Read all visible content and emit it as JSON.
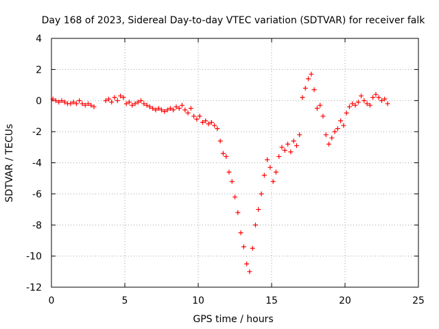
{
  "chart_data": {
    "type": "scatter",
    "title": "Day 168 of 2023, Sidereal Day-to-day VTEC variation (SDTVAR) for receiver falk",
    "xlabel": "GPS time / hours",
    "ylabel": "SDTVAR / TECUs",
    "xlim": [
      0,
      25
    ],
    "ylim": [
      -12,
      4
    ],
    "xticks": [
      "0",
      "5",
      "10",
      "15",
      "20",
      "25"
    ],
    "yticks": [
      "4",
      "2",
      "0",
      "-2",
      "-4",
      "-6",
      "-8",
      "-10",
      "-12"
    ],
    "grid": true,
    "marker": "+",
    "series": [
      {
        "name": "SDTVAR",
        "color": "#ff0000",
        "x": [
          0.1,
          0.3,
          0.5,
          0.7,
          0.9,
          1.1,
          1.3,
          1.5,
          1.7,
          1.9,
          2.1,
          2.3,
          2.5,
          2.7,
          2.9,
          3.7,
          3.9,
          4.1,
          4.3,
          4.5,
          4.7,
          4.9,
          5.1,
          5.3,
          5.5,
          5.7,
          5.9,
          6.1,
          6.3,
          6.5,
          6.7,
          6.9,
          7.1,
          7.3,
          7.5,
          7.7,
          7.9,
          8.1,
          8.3,
          8.5,
          8.7,
          8.9,
          9.1,
          9.3,
          9.5,
          9.7,
          9.9,
          10.1,
          10.3,
          10.5,
          10.7,
          10.9,
          11.1,
          11.3,
          11.5,
          11.7,
          11.9,
          12.1,
          12.3,
          12.5,
          12.7,
          12.9,
          13.1,
          13.3,
          13.5,
          13.7,
          13.9,
          14.1,
          14.3,
          14.5,
          14.7,
          14.9,
          15.1,
          15.3,
          15.5,
          15.7,
          15.9,
          16.1,
          16.3,
          16.5,
          16.7,
          16.9,
          17.1,
          17.3,
          17.5,
          17.7,
          17.9,
          18.1,
          18.3,
          18.5,
          18.7,
          18.9,
          19.1,
          19.3,
          19.5,
          19.7,
          19.9,
          20.1,
          20.3,
          20.5,
          20.7,
          20.9,
          21.1,
          21.3,
          21.5,
          21.7,
          21.9,
          22.1,
          22.3,
          22.5,
          22.7,
          22.9
        ],
        "y": [
          0.1,
          0.0,
          -0.1,
          0.0,
          -0.1,
          -0.2,
          -0.2,
          -0.1,
          -0.2,
          0.0,
          -0.2,
          -0.3,
          -0.2,
          -0.3,
          -0.4,
          0.0,
          0.1,
          -0.1,
          0.2,
          0.0,
          0.3,
          0.2,
          -0.2,
          -0.1,
          -0.3,
          -0.2,
          -0.1,
          0.0,
          -0.2,
          -0.3,
          -0.4,
          -0.5,
          -0.6,
          -0.5,
          -0.6,
          -0.7,
          -0.6,
          -0.5,
          -0.6,
          -0.4,
          -0.5,
          -0.3,
          -0.6,
          -0.8,
          -0.5,
          -1.0,
          -1.2,
          -1.0,
          -1.4,
          -1.3,
          -1.5,
          -1.4,
          -1.6,
          -1.8,
          -2.6,
          -3.4,
          -3.6,
          -4.6,
          -5.2,
          -6.2,
          -7.2,
          -8.5,
          -9.4,
          -10.5,
          -11.0,
          -9.5,
          -8.0,
          -7.0,
          -6.0,
          -4.8,
          -3.8,
          -4.3,
          -5.2,
          -4.6,
          -3.6,
          -3.0,
          -3.2,
          -2.8,
          -3.3,
          -2.6,
          -2.9,
          -2.2,
          0.2,
          0.8,
          1.4,
          1.7,
          0.7,
          -0.5,
          -0.3,
          -1.0,
          -2.2,
          -2.8,
          -2.4,
          -2.0,
          -1.8,
          -1.3,
          -1.6,
          -0.8,
          -0.4,
          -0.2,
          -0.3,
          -0.1,
          0.3,
          0.0,
          -0.2,
          -0.3,
          0.2,
          0.4,
          0.2,
          0.0,
          0.1,
          -0.2
        ]
      }
    ]
  }
}
